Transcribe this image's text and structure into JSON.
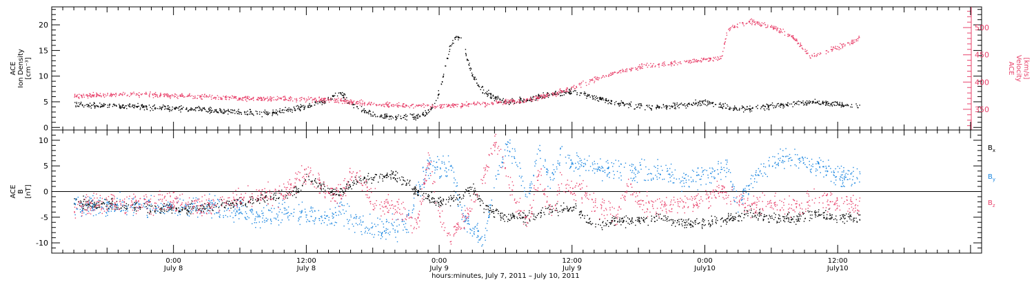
{
  "chart_data": [
    {
      "type": "scatter",
      "panel": "plasma",
      "left_axis": {
        "label_lines": [
          "ACE",
          "Ion Density",
          "[cm⁻³]"
        ],
        "ticks": [
          0,
          5,
          10,
          15,
          20
        ],
        "ylim": [
          -0.5,
          23.5
        ],
        "color": "#000000"
      },
      "right_axis": {
        "label_lines": [
          "ACE",
          "Velocity",
          "[km/s]"
        ],
        "ticks": [
          350,
          400,
          450,
          500
        ],
        "ylim": [
          312,
          538
        ],
        "color": "#e8406a"
      },
      "series": [
        {
          "color": "#000000",
          "axis": "left",
          "points": [
            [
              -9,
              4.6
            ],
            [
              -6,
              4.3
            ],
            [
              -3,
              4.1
            ],
            [
              0,
              3.8
            ],
            [
              3,
              3.5
            ],
            [
              6,
              3.0
            ],
            [
              9,
              2.8
            ],
            [
              10,
              3.3
            ],
            [
              12,
              4.2
            ],
            [
              14,
              5.5
            ],
            [
              15,
              7.0
            ],
            [
              16,
              4.5
            ],
            [
              18,
              2.5
            ],
            [
              20,
              2.0
            ],
            [
              22,
              2.2
            ],
            [
              23,
              3.0
            ],
            [
              23.5,
              4.5
            ],
            [
              24,
              7.0
            ],
            [
              24.5,
              12.0
            ],
            [
              25,
              16.0
            ],
            [
              25.5,
              18.0
            ],
            [
              26,
              17.0
            ],
            [
              27,
              10.0
            ],
            [
              28,
              7.0
            ],
            [
              30,
              5.0
            ],
            [
              32,
              5.5
            ],
            [
              34,
              6.5
            ],
            [
              36,
              7.0
            ],
            [
              38,
              6.0
            ],
            [
              40,
              4.8
            ],
            [
              42,
              4.2
            ],
            [
              44,
              4.0
            ],
            [
              46,
              4.5
            ],
            [
              48,
              5.0
            ],
            [
              50,
              4.0
            ],
            [
              52,
              3.8
            ],
            [
              54,
              4.2
            ],
            [
              56,
              4.8
            ],
            [
              58,
              5.0
            ],
            [
              60,
              4.5
            ],
            [
              62,
              4.2
            ]
          ],
          "jitter": 0.5
        },
        {
          "color": "#e8406a",
          "axis": "right",
          "points": [
            [
              -9,
              375
            ],
            [
              -6,
              377
            ],
            [
              -3,
              378
            ],
            [
              0,
              376
            ],
            [
              3,
              373
            ],
            [
              6,
              371
            ],
            [
              9,
              370
            ],
            [
              12,
              369
            ],
            [
              14,
              368
            ],
            [
              16,
              364
            ],
            [
              18,
              361
            ],
            [
              20,
              358
            ],
            [
              22,
              358
            ],
            [
              24,
              356
            ],
            [
              26,
              358
            ],
            [
              28,
              361
            ],
            [
              30,
              364
            ],
            [
              32,
              368
            ],
            [
              34,
              377
            ],
            [
              36,
              390
            ],
            [
              38,
              406
            ],
            [
              40,
              418
            ],
            [
              42,
              428
            ],
            [
              44,
              433
            ],
            [
              46,
              438
            ],
            [
              47,
              440
            ],
            [
              48,
              443
            ],
            [
              49.5,
              445
            ],
            [
              50,
              498
            ],
            [
              52,
              512
            ],
            [
              54,
              503
            ],
            [
              56,
              482
            ],
            [
              57.5,
              448
            ],
            [
              59,
              457
            ],
            [
              61,
              472
            ],
            [
              62,
              482
            ]
          ],
          "jitter": 4
        }
      ]
    },
    {
      "type": "scatter",
      "panel": "magnetic field",
      "left_axis": {
        "label_lines": [
          "ACE",
          "B",
          "[nT]"
        ],
        "ticks": [
          -10,
          -5,
          0,
          5,
          10
        ],
        "ylim": [
          -12,
          12
        ],
        "color": "#000000"
      },
      "zero_line": true,
      "legend": {
        "placement": "right",
        "entries": [
          {
            "label": "B",
            "sub": "x",
            "color": "#000000"
          },
          {
            "label": "B",
            "sub": "y",
            "color": "#1a86e0"
          },
          {
            "label": "B",
            "sub": "z",
            "color": "#e8406a"
          }
        ]
      },
      "series": [
        {
          "name": "Bx",
          "color": "#000000",
          "points": [
            [
              -9,
              -2
            ],
            [
              -6,
              -2.5
            ],
            [
              -3,
              -3
            ],
            [
              0,
              -3.5
            ],
            [
              3,
              -3
            ],
            [
              6,
              -2
            ],
            [
              9,
              -1
            ],
            [
              11,
              0
            ],
            [
              12,
              2.5
            ],
            [
              13,
              2
            ],
            [
              14,
              0
            ],
            [
              15,
              -0.5
            ],
            [
              16,
              1.5
            ],
            [
              18,
              3
            ],
            [
              20,
              3.2
            ],
            [
              21,
              2
            ],
            [
              22,
              0
            ],
            [
              23,
              -1
            ],
            [
              24,
              -2
            ],
            [
              26,
              -1
            ],
            [
              27,
              1
            ],
            [
              28,
              -3
            ],
            [
              30,
              -5
            ],
            [
              32,
              -5
            ],
            [
              34,
              -3.5
            ],
            [
              36,
              -3
            ],
            [
              38,
              -6.5
            ],
            [
              40,
              -5.5
            ],
            [
              42,
              -5.5
            ],
            [
              44,
              -5
            ],
            [
              46,
              -6
            ],
            [
              48,
              -6
            ],
            [
              50,
              -5.5
            ],
            [
              52,
              -4
            ],
            [
              54,
              -5
            ],
            [
              56,
              -5.5
            ],
            [
              58,
              -4
            ],
            [
              60,
              -5
            ],
            [
              62,
              -5
            ]
          ],
          "jitter": 0.9
        },
        {
          "name": "By",
          "color": "#1a86e0",
          "points": [
            [
              -9,
              -2.5
            ],
            [
              -6,
              -3
            ],
            [
              -3,
              -2.5
            ],
            [
              0,
              -3
            ],
            [
              3,
              -3
            ],
            [
              6,
              -4
            ],
            [
              8,
              -5
            ],
            [
              10,
              -4
            ],
            [
              12,
              -4.5
            ],
            [
              14,
              -5
            ],
            [
              15,
              -3
            ],
            [
              16,
              -5
            ],
            [
              18,
              -7
            ],
            [
              20,
              -7
            ],
            [
              21,
              -6.5
            ],
            [
              22,
              0
            ],
            [
              23,
              5
            ],
            [
              24,
              5
            ],
            [
              25,
              5
            ],
            [
              26,
              -4
            ],
            [
              27,
              -8
            ],
            [
              28,
              -9
            ],
            [
              29,
              2
            ],
            [
              30,
              9
            ],
            [
              31,
              6
            ],
            [
              32,
              -2
            ],
            [
              33,
              9
            ],
            [
              34,
              2
            ],
            [
              35,
              8
            ],
            [
              36,
              5
            ],
            [
              37,
              6
            ],
            [
              38,
              5
            ],
            [
              40,
              4
            ],
            [
              42,
              4
            ],
            [
              44,
              3.5
            ],
            [
              46,
              2.5
            ],
            [
              48,
              3
            ],
            [
              50,
              5
            ],
            [
              51,
              -3
            ],
            [
              52,
              2
            ],
            [
              54,
              6
            ],
            [
              56,
              7
            ],
            [
              58,
              5
            ],
            [
              60,
              3
            ],
            [
              62,
              3
            ]
          ],
          "jitter": 1.8
        },
        {
          "name": "Bz",
          "color": "#e8406a",
          "points": [
            [
              -9,
              -3
            ],
            [
              -6,
              -2
            ],
            [
              -3,
              -2.5
            ],
            [
              0,
              -2
            ],
            [
              3,
              -3
            ],
            [
              6,
              -1
            ],
            [
              8,
              -0.5
            ],
            [
              10,
              -0.5
            ],
            [
              12,
              4
            ],
            [
              13,
              2
            ],
            [
              14,
              0
            ],
            [
              15,
              -1
            ],
            [
              16,
              4
            ],
            [
              17,
              2
            ],
            [
              18,
              -2
            ],
            [
              19,
              -2.5
            ],
            [
              20,
              -3
            ],
            [
              21,
              -5
            ],
            [
              22,
              -6
            ],
            [
              23,
              6
            ],
            [
              24,
              -4
            ],
            [
              25,
              -9
            ],
            [
              26,
              -6
            ],
            [
              27,
              -3
            ],
            [
              28,
              3
            ],
            [
              29,
              10
            ],
            [
              30,
              4
            ],
            [
              31,
              -3
            ],
            [
              32,
              -6
            ],
            [
              33,
              4
            ],
            [
              34,
              -4
            ],
            [
              35,
              2
            ],
            [
              36,
              0
            ],
            [
              37,
              0
            ],
            [
              38,
              -2
            ],
            [
              39,
              -3
            ],
            [
              40,
              -5
            ],
            [
              41,
              2
            ],
            [
              42,
              -2
            ],
            [
              44,
              -3
            ],
            [
              46,
              -2
            ],
            [
              48,
              -1
            ],
            [
              50,
              0
            ],
            [
              52,
              -3
            ],
            [
              54,
              -2
            ],
            [
              56,
              -3
            ],
            [
              58,
              -1
            ],
            [
              60,
              -2
            ],
            [
              62,
              -3
            ]
          ],
          "jitter": 1.8
        }
      ]
    }
  ],
  "x_axis": {
    "range_hours": [
      -11,
      73
    ],
    "major_ticks": [
      {
        "hour": 0,
        "line1": "0:00",
        "line2": "July 8"
      },
      {
        "hour": 12,
        "line1": "12:00",
        "line2": "July 8"
      },
      {
        "hour": 24,
        "line1": "0:00",
        "line2": "July 9"
      },
      {
        "hour": 36,
        "line1": "12:00",
        "line2": "July 9"
      },
      {
        "hour": 48,
        "line1": "0:00",
        "line2": "July10"
      },
      {
        "hour": 60,
        "line1": "12:00",
        "line2": "July10"
      }
    ],
    "title": "hours:minutes, July  7, 2011 – July 10, 2011"
  }
}
